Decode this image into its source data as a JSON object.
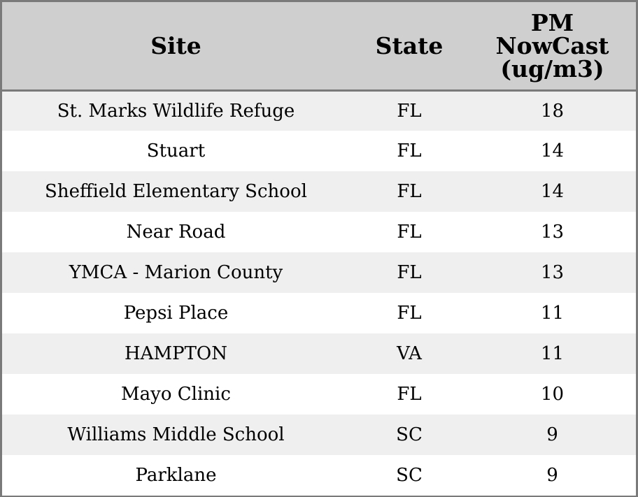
{
  "chart_data": {
    "type": "table",
    "columns": [
      "Site",
      "State",
      "PM NowCast (ug/m3)"
    ],
    "header_lines": {
      "site": [
        "Site"
      ],
      "state": [
        "State"
      ],
      "pm": [
        "PM",
        "NowCast",
        "(ug/m3)"
      ]
    },
    "rows": [
      {
        "site": "St. Marks Wildlife Refuge",
        "state": "FL",
        "pm": 18
      },
      {
        "site": "Stuart",
        "state": "FL",
        "pm": 14
      },
      {
        "site": "Sheffield Elementary School",
        "state": "FL",
        "pm": 14
      },
      {
        "site": "Near Road",
        "state": "FL",
        "pm": 13
      },
      {
        "site": "YMCA - Marion County",
        "state": "FL",
        "pm": 13
      },
      {
        "site": "Pepsi Place",
        "state": "FL",
        "pm": 11
      },
      {
        "site": "HAMPTON",
        "state": "VA",
        "pm": 11
      },
      {
        "site": "Mayo Clinic",
        "state": "FL",
        "pm": 10
      },
      {
        "site": "Williams Middle School",
        "state": "SC",
        "pm": 9
      },
      {
        "site": "Parklane",
        "state": "SC",
        "pm": 9
      }
    ]
  },
  "colors": {
    "header_bg": "#cfcfcf",
    "row_alt_bg": "#efefef",
    "row_bg": "#ffffff",
    "border": "#7a7a7a"
  }
}
